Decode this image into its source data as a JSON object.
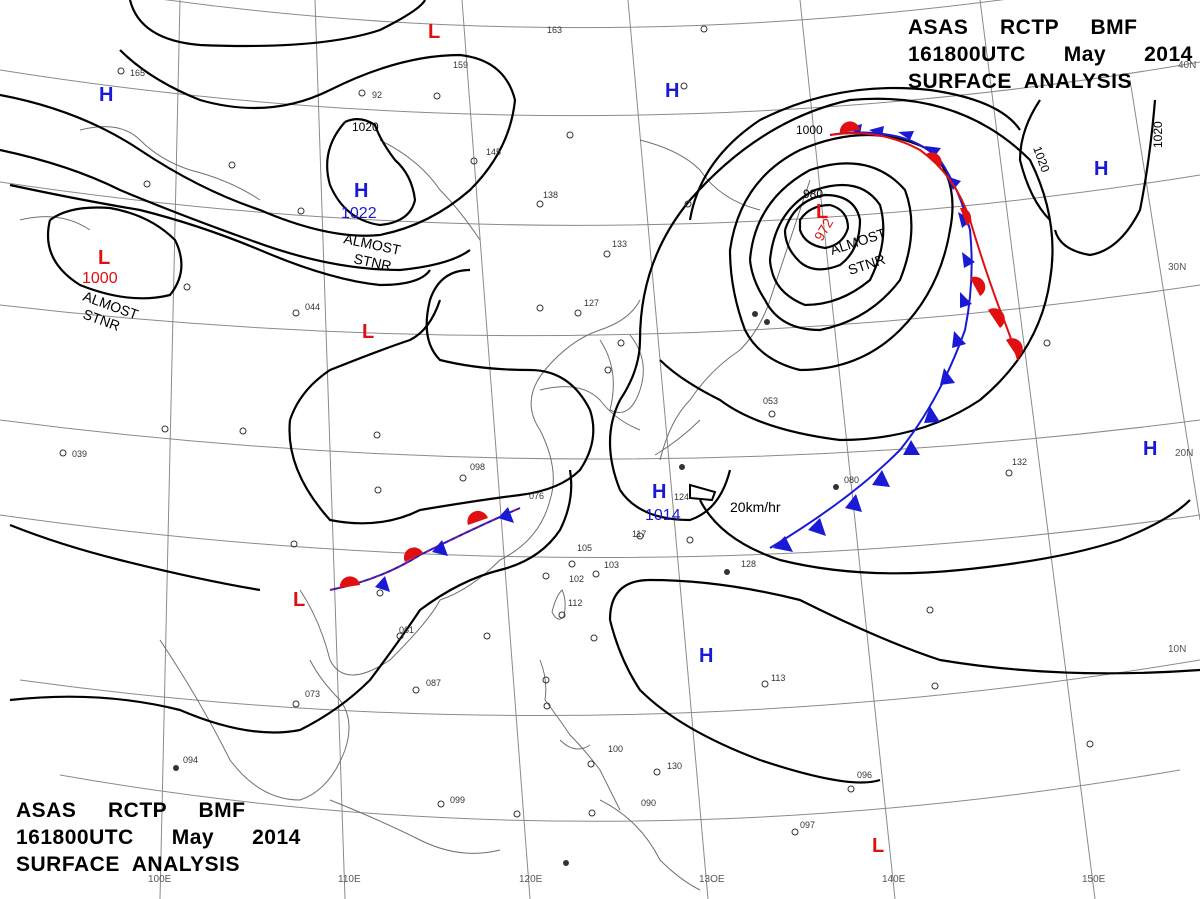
{
  "header": {
    "line1": "ASAS     RCTP     BMF",
    "line2": "161800UTC      May      2014",
    "line3": "SURFACE  ANALYSIS"
  },
  "footer": {
    "line1": "ASAS     RCTP     BMF",
    "line2": "161800UTC      May      2014",
    "line3": "SURFACE  ANALYSIS"
  },
  "colors": {
    "high": "#1a1ad6",
    "low": "#e01010",
    "cold_front": "#1a1ad6",
    "warm_front": "#e01010",
    "isobar": "#000000",
    "coast": "#666666",
    "grid": "#777777"
  },
  "pressure_centers": [
    {
      "type": "H",
      "letter": "H",
      "value": ""
    },
    {
      "type": "H",
      "letter": "H",
      "value": ""
    },
    {
      "type": "H",
      "letter": "H",
      "value": "1022"
    },
    {
      "type": "H",
      "letter": "H",
      "value": ""
    },
    {
      "type": "H",
      "letter": "H",
      "value": ""
    },
    {
      "type": "H",
      "letter": "H",
      "value": "1014"
    },
    {
      "type": "H",
      "letter": "H",
      "value": ""
    },
    {
      "type": "L",
      "letter": "L",
      "value": ""
    },
    {
      "type": "L",
      "letter": "L",
      "value": "1000"
    },
    {
      "type": "L",
      "letter": "L",
      "value": ""
    },
    {
      "type": "L",
      "letter": "L",
      "value": "972"
    },
    {
      "type": "L",
      "letter": "L",
      "value": ""
    },
    {
      "type": "L",
      "letter": "L",
      "value": ""
    }
  ],
  "annotations": {
    "stnr_1": [
      "ALMOST",
      "STNR"
    ],
    "stnr_2": [
      "ALMOST",
      "STNR"
    ],
    "stnr_3": [
      "ALMOST",
      "STNR"
    ],
    "speed": "20km/hr"
  },
  "isobar_labels": [
    "1020",
    "1000",
    "980",
    "1020",
    "1020"
  ],
  "lon_labels": [
    "100E",
    "110E",
    "120E",
    "13OE",
    "140E",
    "150E"
  ],
  "lat_labels": [
    "40N",
    "30N",
    "20N",
    "10N"
  ],
  "station_samples": [
    "165",
    "159",
    "92",
    "163",
    "145",
    "138",
    "133",
    "127",
    "124",
    "117",
    "105",
    "103",
    "102",
    "099",
    "098",
    "096",
    "094",
    "090",
    "087",
    "076",
    "073",
    "061",
    "053",
    "044",
    "039",
    "130",
    "128",
    "132",
    "113",
    "112",
    "100",
    "097",
    "080"
  ]
}
